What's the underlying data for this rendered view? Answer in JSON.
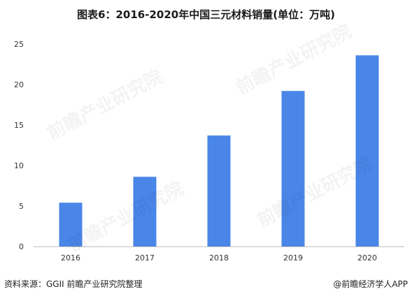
{
  "chart_data": {
    "type": "bar",
    "title": "图表6：2016-2020年中国三元材料销量(单位：万吨)",
    "xlabel": "",
    "ylabel": "",
    "categories": [
      "2016",
      "2017",
      "2018",
      "2019",
      "2020"
    ],
    "values": [
      5.4,
      8.6,
      13.7,
      19.2,
      23.6
    ],
    "ylim": [
      0,
      25
    ],
    "yticks": [
      "0",
      "5",
      "10",
      "15",
      "20",
      "25"
    ],
    "grid": false,
    "legend": "none",
    "bar_color": "#4A86E8"
  },
  "footer": {
    "source": "资料来源：GGII 前瞻产业研究院整理",
    "brand": "@前瞻经济学人APP"
  },
  "watermark": {
    "text": "前瞻产业研究院"
  }
}
